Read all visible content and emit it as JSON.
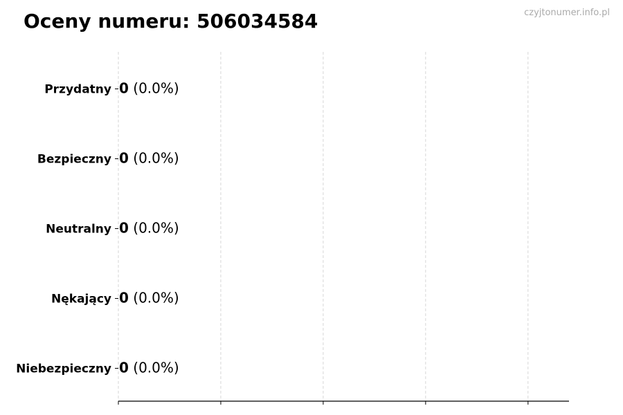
{
  "watermark": "czyjtonumer.info.pl",
  "chart_data": {
    "type": "bar",
    "orientation": "horizontal",
    "title": "Oceny numeru: 506034584",
    "xlabel": "",
    "ylabel": "",
    "categories": [
      "Przydatny",
      "Bezpieczny",
      "Neutralny",
      "Nękający",
      "Niebezpieczny"
    ],
    "values": [
      0,
      0,
      0,
      0,
      0
    ],
    "data_labels": [
      {
        "count": "0",
        "percent": "(0.0%)"
      },
      {
        "count": "0",
        "percent": "(0.0%)"
      },
      {
        "count": "0",
        "percent": "(0.0%)"
      },
      {
        "count": "0",
        "percent": "(0.0%)"
      },
      {
        "count": "0",
        "percent": "(0.0%)"
      }
    ],
    "xlim": [
      0,
      4.4
    ],
    "xticks": [
      0,
      1,
      2,
      3,
      4
    ],
    "grid": "x, dashed",
    "legend": "none",
    "bar_edge_color": "#000000",
    "grid_color": "#cccccc",
    "watermark_color": "#aaaaaa"
  }
}
